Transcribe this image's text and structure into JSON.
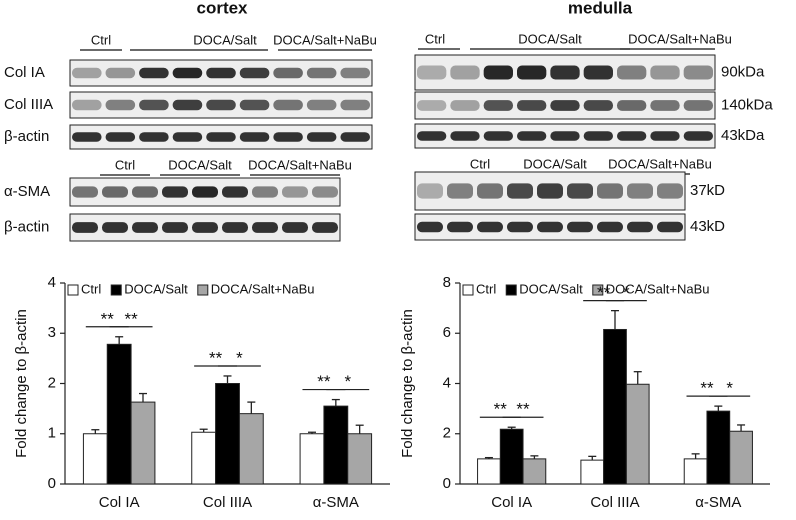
{
  "blots": {
    "cortex": {
      "title": "cortex",
      "groups": [
        "Ctrl",
        "DOCA/Salt",
        "DOCA/Salt+NaBu"
      ],
      "rows": [
        "Col IA",
        "Col IIIA",
        "β-actin"
      ],
      "groups2": [
        "Ctrl",
        "DOCA/Salt",
        "DOCA/Salt+NaBu"
      ],
      "rows2": [
        "α-SMA",
        "β-actin"
      ]
    },
    "medulla": {
      "title": "medulla",
      "groups": [
        "Ctrl",
        "DOCA/Salt",
        "DOCA/Salt+NaBu"
      ],
      "sizes": [
        "90kDa",
        "140kDa",
        "43kDa"
      ],
      "groups2": [
        "Ctrl",
        "DOCA/Salt",
        "DOCA/Salt+NaBu"
      ],
      "sizes2": [
        "37kD",
        "43kD"
      ]
    }
  },
  "chart_data": [
    {
      "type": "bar",
      "ylabel": "Fold change to β-actin",
      "categories": [
        "Col IA",
        "Col IIIA",
        "α-SMA"
      ],
      "series": [
        {
          "name": "Ctrl",
          "color": "#ffffff",
          "values": [
            1.0,
            1.03,
            1.0
          ],
          "errors": [
            0.08,
            0.06,
            0.03
          ]
        },
        {
          "name": "DOCA/Salt",
          "color": "#000000",
          "values": [
            2.78,
            2.0,
            1.55
          ],
          "errors": [
            0.15,
            0.15,
            0.13
          ]
        },
        {
          "name": "DOCA/Salt+NaBu",
          "color": "#a6a6a6",
          "values": [
            1.63,
            1.4,
            1.0
          ],
          "errors": [
            0.17,
            0.23,
            0.17
          ]
        }
      ],
      "significance": [
        [
          "**",
          "**"
        ],
        [
          "**",
          "*"
        ],
        [
          "**",
          "*"
        ]
      ],
      "ylim": [
        0,
        4
      ],
      "yticks": [
        0,
        1,
        2,
        3,
        4
      ]
    },
    {
      "type": "bar",
      "ylabel": "Fold change to β-actin",
      "categories": [
        "Col IA",
        "Col IIIA",
        "α-SMA"
      ],
      "series": [
        {
          "name": "Ctrl",
          "color": "#ffffff",
          "values": [
            1.0,
            0.95,
            1.0
          ],
          "errors": [
            0.05,
            0.15,
            0.2
          ]
        },
        {
          "name": "DOCA/Salt",
          "color": "#000000",
          "values": [
            2.18,
            6.15,
            2.9
          ],
          "errors": [
            0.08,
            0.75,
            0.2
          ]
        },
        {
          "name": "DOCA/Salt+NaBu",
          "color": "#a6a6a6",
          "values": [
            1.0,
            3.97,
            2.1
          ],
          "errors": [
            0.12,
            0.5,
            0.25
          ]
        }
      ],
      "significance": [
        [
          "**",
          "**"
        ],
        [
          "**",
          "*"
        ],
        [
          "**",
          "*"
        ]
      ],
      "ylim": [
        0,
        8
      ],
      "yticks": [
        0,
        2,
        4,
        6,
        8
      ]
    }
  ]
}
